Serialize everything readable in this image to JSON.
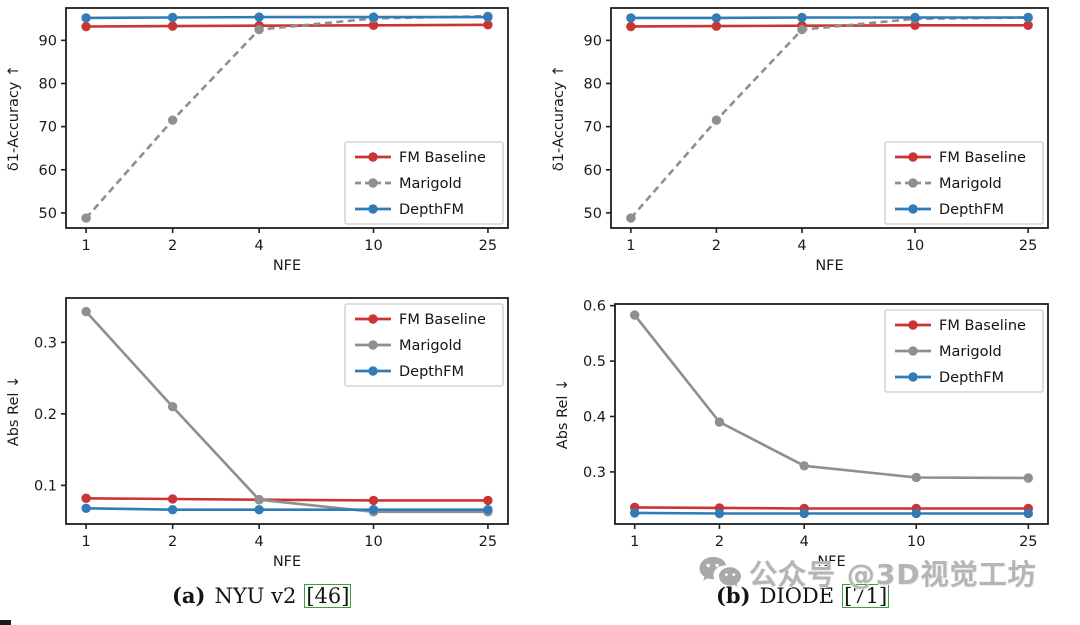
{
  "figure": {
    "xlabel": "NFE",
    "x_values": [
      1,
      2,
      4,
      10,
      25
    ]
  },
  "colors": {
    "fm_baseline": "#cb3434",
    "marigold": "#8f8f8f",
    "depthfm": "#2f7cb8",
    "citation_box": "#3aa03a",
    "axis": "#1f1f1f",
    "watermark_gray": "#b5b5b5"
  },
  "chart_data": [
    {
      "type": "line",
      "position": "top-left",
      "dataset": "NYU v2",
      "xscale": "log",
      "x": [
        1,
        2,
        4,
        10,
        25
      ],
      "xlabel": "NFE",
      "ylabel": "δ1-Accuracy ↑",
      "ylim": [
        46.5,
        97.5
      ],
      "yticks": [
        50,
        60,
        70,
        80,
        90
      ],
      "ytick_decimals": 0,
      "grid": false,
      "legend_position": "lower-right",
      "series": [
        {
          "name": "FM Baseline",
          "color_key": "fm_baseline",
          "dash": "solid",
          "values": [
            93.2,
            93.3,
            93.4,
            93.5,
            93.6
          ]
        },
        {
          "name": "Marigold",
          "color_key": "marigold",
          "dash": "dashed",
          "values": [
            48.8,
            71.5,
            92.5,
            95.1,
            95.6
          ]
        },
        {
          "name": "DepthFM",
          "color_key": "depthfm",
          "dash": "solid",
          "values": [
            95.2,
            95.3,
            95.4,
            95.4,
            95.4
          ]
        }
      ]
    },
    {
      "type": "line",
      "position": "top-right",
      "dataset": "DIODE",
      "xscale": "log",
      "x": [
        1,
        2,
        4,
        10,
        25
      ],
      "xlabel": "NFE",
      "ylabel": "δ1-Accuracy ↑",
      "ylim": [
        46.5,
        97.5
      ],
      "yticks": [
        50,
        60,
        70,
        80,
        90
      ],
      "ytick_decimals": 0,
      "grid": false,
      "legend_position": "lower-right",
      "series": [
        {
          "name": "FM Baseline",
          "color_key": "fm_baseline",
          "dash": "solid",
          "values": [
            93.2,
            93.3,
            93.4,
            93.5,
            93.5
          ]
        },
        {
          "name": "Marigold",
          "color_key": "marigold",
          "dash": "dashed",
          "values": [
            48.8,
            71.5,
            92.5,
            95.0,
            95.3
          ]
        },
        {
          "name": "DepthFM",
          "color_key": "depthfm",
          "dash": "solid",
          "values": [
            95.2,
            95.2,
            95.3,
            95.3,
            95.3
          ]
        }
      ]
    },
    {
      "type": "line",
      "position": "bottom-left",
      "dataset": "NYU v2",
      "xscale": "log",
      "x": [
        1,
        2,
        4,
        10,
        25
      ],
      "xlabel": "NFE",
      "ylabel": "Abs Rel ↓",
      "ylim": [
        0.046,
        0.362
      ],
      "yticks": [
        0.1,
        0.2,
        0.3
      ],
      "ytick_decimals": 1,
      "grid": false,
      "legend_position": "upper-right",
      "series": [
        {
          "name": "FM Baseline",
          "color_key": "fm_baseline",
          "dash": "solid",
          "values": [
            0.082,
            0.081,
            0.08,
            0.079,
            0.079
          ]
        },
        {
          "name": "Marigold",
          "color_key": "marigold",
          "dash": "solid",
          "values": [
            0.343,
            0.21,
            0.08,
            0.063,
            0.063
          ]
        },
        {
          "name": "DepthFM",
          "color_key": "depthfm",
          "dash": "solid",
          "values": [
            0.068,
            0.066,
            0.066,
            0.066,
            0.066
          ]
        }
      ]
    },
    {
      "type": "line",
      "position": "bottom-right",
      "dataset": "DIODE",
      "xscale": "log",
      "x": [
        1,
        2,
        4,
        10,
        25
      ],
      "xlabel": "NFE",
      "ylabel": "Abs Rel ↓",
      "ylim": [
        0.206,
        0.603
      ],
      "yticks": [
        0.3,
        0.4,
        0.5,
        0.6
      ],
      "ytick_decimals": 1,
      "grid": false,
      "legend_position": "upper-right",
      "series": [
        {
          "name": "FM Baseline",
          "color_key": "fm_baseline",
          "dash": "solid",
          "values": [
            0.236,
            0.235,
            0.234,
            0.234,
            0.234
          ]
        },
        {
          "name": "Marigold",
          "color_key": "marigold",
          "dash": "solid",
          "values": [
            0.583,
            0.39,
            0.311,
            0.29,
            0.289
          ]
        },
        {
          "name": "DepthFM",
          "color_key": "depthfm",
          "dash": "solid",
          "values": [
            0.226,
            0.225,
            0.225,
            0.225,
            0.225
          ]
        }
      ]
    }
  ],
  "captions": [
    {
      "label": "(a)",
      "dataset": "NYU v2",
      "citation": "[46]"
    },
    {
      "label": "(b)",
      "dataset": "DIODE",
      "citation": "[71]"
    }
  ],
  "watermark": {
    "icon": "wechat-icon",
    "text": "公众号 @3D视觉工坊"
  }
}
